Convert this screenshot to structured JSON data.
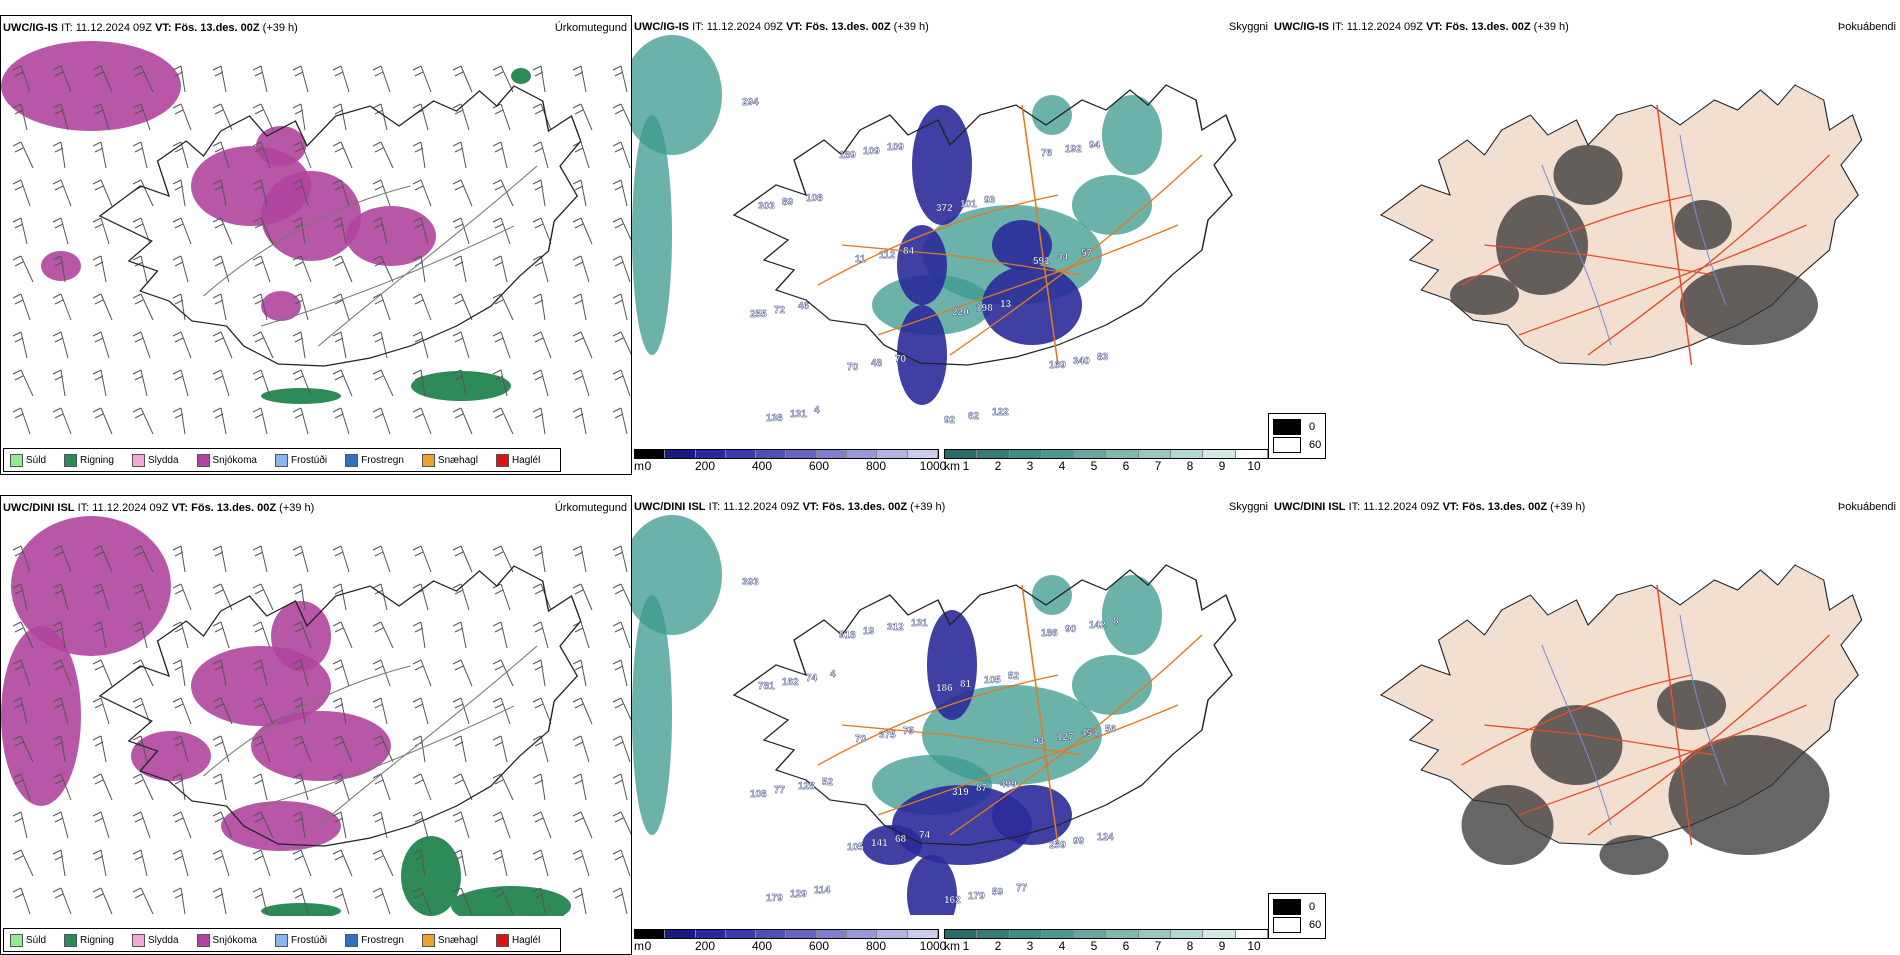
{
  "rows": [
    {
      "model": "UWC/IG-IS",
      "precip_panel": {
        "it_label": "IT:",
        "it_value": "11.12.2024 09Z",
        "vt_label": "VT:",
        "vt_value": "Fös. 13.des. 00Z",
        "lead": "(+39 h)",
        "title": "Úrkomutegund"
      },
      "cloud_panel": {
        "it_label": "IT:",
        "it_value": "11.12.2024 09Z",
        "vt_label": "VT:",
        "vt_value": "Fös. 13.des. 00Z",
        "lead": "(+39 h)",
        "title": "Skyggni",
        "labels": [
          "294",
          "189",
          "372",
          "591",
          "255",
          "70",
          "92",
          "76",
          "303",
          "11",
          "220",
          "169",
          "138",
          "109",
          "101",
          "44",
          "72",
          "48",
          "62",
          "192",
          "89",
          "112",
          "198",
          "340",
          "131",
          "109",
          "93",
          "57",
          "46",
          "70",
          "122",
          "94",
          "108",
          "84",
          "13",
          "83",
          "4"
        ]
      },
      "fog_panel": {
        "it_label": "IT:",
        "it_value": "11.12.2024 09Z",
        "vt_label": "VT:",
        "vt_value": "Fös. 13.des. 00Z",
        "lead": "(+39 h)",
        "title": "Þokuábendi"
      }
    },
    {
      "model": "UWC/DINI ISL",
      "precip_panel": {
        "it_label": "IT:",
        "it_value": "11.12.2024 09Z",
        "vt_label": "VT:",
        "vt_value": "Fös. 13.des. 00Z",
        "lead": "(+39 h)",
        "title": "Úrkomutegund"
      },
      "cloud_panel": {
        "it_label": "IT:",
        "it_value": "11.12.2024 09Z",
        "vt_label": "VT:",
        "vt_value": "Fös. 13.des. 00Z",
        "lead": "(+39 h)",
        "title": "Skyggni",
        "labels": [
          "393",
          "518",
          "186",
          "93",
          "108",
          "105",
          "162",
          "186",
          "781",
          "70",
          "319",
          "259",
          "179",
          "19",
          "81",
          "127",
          "77",
          "141",
          "179",
          "90",
          "162",
          "375",
          "87",
          "99",
          "129",
          "312",
          "105",
          "454",
          "128",
          "68",
          "59",
          "142",
          "74",
          "75",
          "499",
          "124",
          "114",
          "131",
          "52",
          "56",
          "52",
          "74",
          "77",
          "8",
          "4"
        ]
      },
      "fog_panel": {
        "it_label": "IT:",
        "it_value": "11.12.2024 09Z",
        "vt_label": "VT:",
        "vt_value": "Fös. 13.des. 00Z",
        "lead": "(+39 h)",
        "title": "Þokuábendi"
      }
    }
  ],
  "precip_legend": [
    {
      "label": "Súld",
      "color": "#90ee90"
    },
    {
      "label": "Rigning",
      "color": "#2e8b57"
    },
    {
      "label": "Slydda",
      "color": "#f4a6d7"
    },
    {
      "label": "Snjókoma",
      "color": "#b0449e"
    },
    {
      "label": "Frostúði",
      "color": "#87b8f0"
    },
    {
      "label": "Frostregn",
      "color": "#2f6fc9"
    },
    {
      "label": "Snæhagl",
      "color": "#f0a030"
    },
    {
      "label": "Haglél",
      "color": "#e01010"
    }
  ],
  "ceiling_scale": {
    "unit": "m",
    "ticks": [
      "0",
      "200",
      "400",
      "600",
      "800",
      "1000"
    ]
  },
  "visibility_scale": {
    "unit": "km",
    "ticks": [
      "1",
      "2",
      "3",
      "4",
      "5",
      "6",
      "7",
      "8",
      "9",
      "10"
    ]
  },
  "fog_key": [
    {
      "value": "0",
      "color": "#000000"
    },
    {
      "value": "60",
      "color": "#ffffff"
    }
  ],
  "colors": {
    "snow": "#b0449e",
    "rain": "#2e8b57",
    "cloud_teal": "#3a9a8e",
    "ceiling_blue": "#2a2a9a",
    "roads": "#e07a20",
    "fog_land": "#f3dfd0",
    "fog_roads": "#e0502a"
  }
}
